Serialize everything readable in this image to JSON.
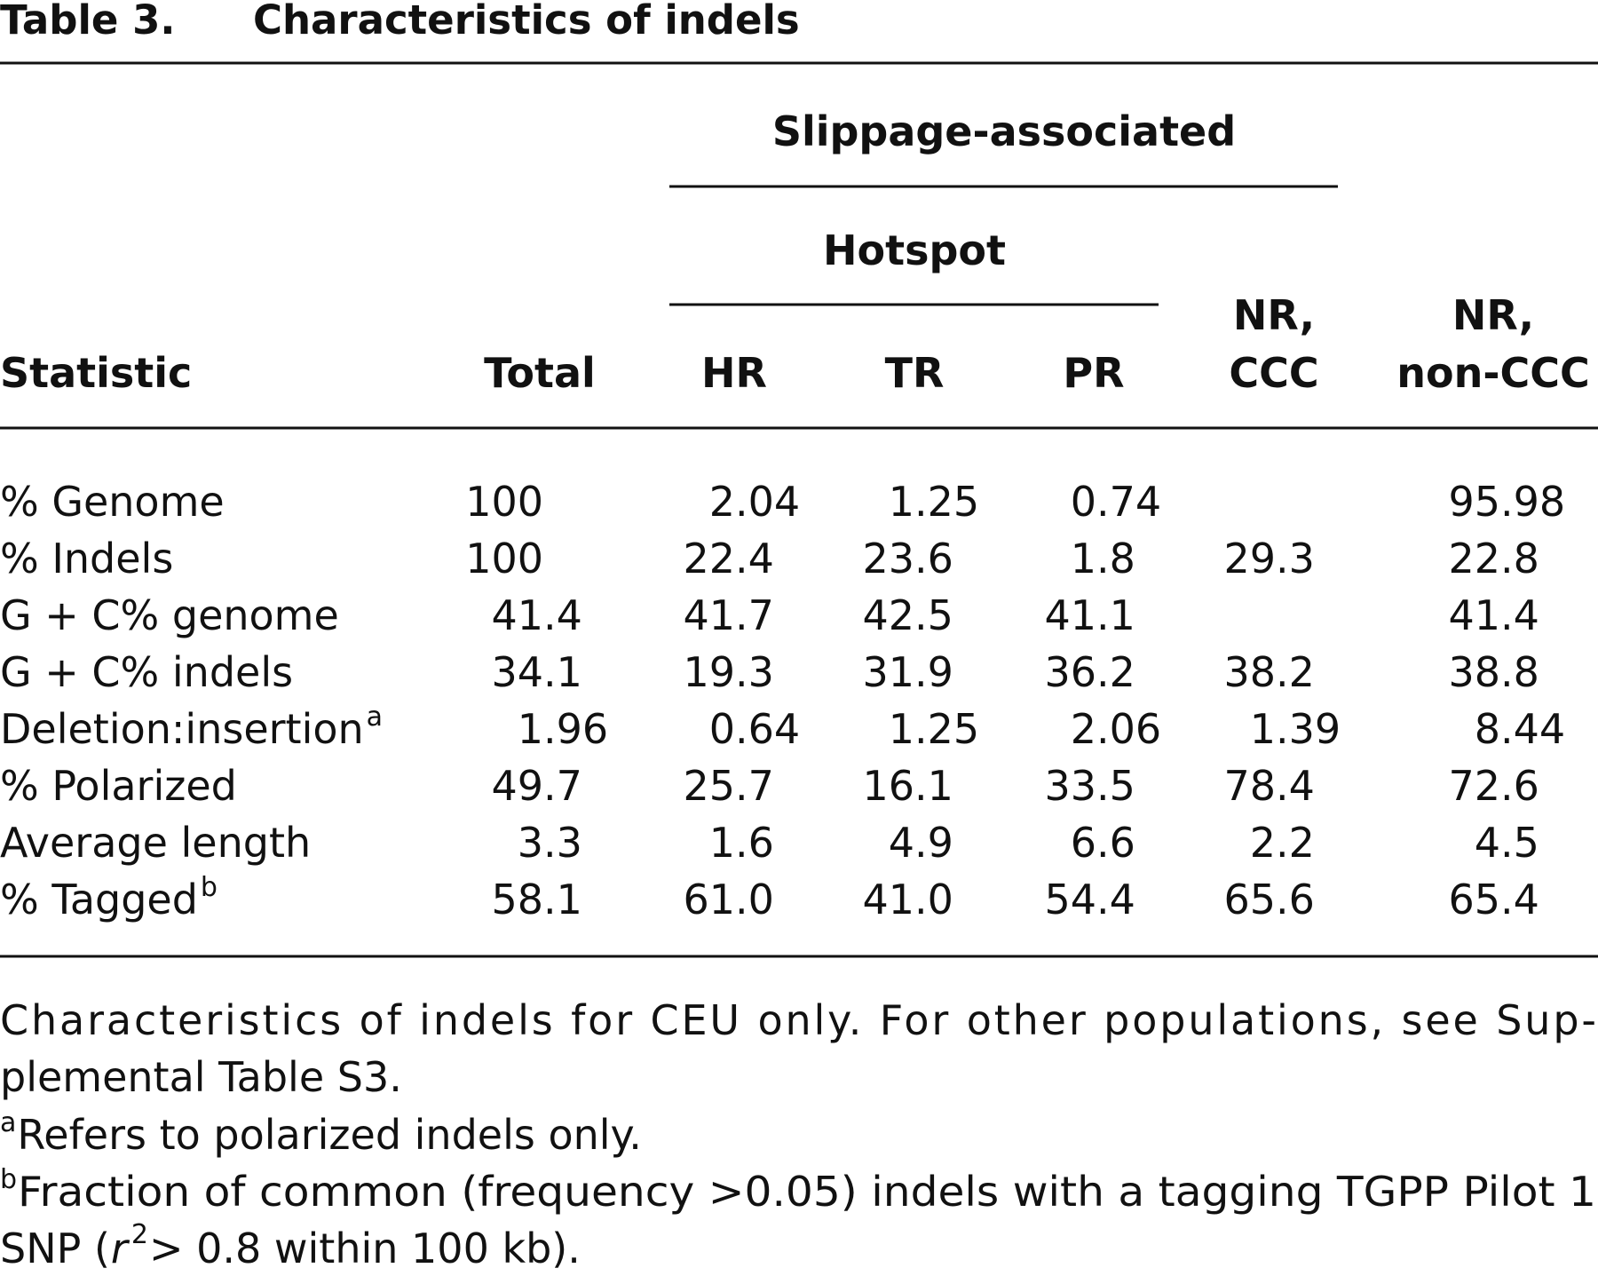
{
  "title": {
    "label": "Table 3.",
    "text": "Characteristics of indels"
  },
  "table": {
    "group_header": "Slippage-associated",
    "subgroup_header": "Hotspot",
    "columns": [
      [
        "Statistic"
      ],
      [
        "Total"
      ],
      [
        "HR"
      ],
      [
        "TR"
      ],
      [
        "PR"
      ],
      [
        "NR,",
        "CCC"
      ],
      [
        "NR,",
        "non-CCC"
      ]
    ],
    "rows": [
      {
        "label": "% Genome",
        "values": [
          "100",
          "2.04",
          "1.25",
          "0.74",
          null,
          "95.98"
        ]
      },
      {
        "label": "% Indels",
        "values": [
          "100",
          "22.4",
          "23.6",
          "1.8",
          "29.3",
          "22.8"
        ]
      },
      {
        "label": "G + C% genome",
        "values": [
          "41.4",
          "41.7",
          "42.5",
          "41.1",
          null,
          "41.4"
        ]
      },
      {
        "label": "G + C% indels",
        "values": [
          "34.1",
          "19.3",
          "31.9",
          "36.2",
          "38.2",
          "38.8"
        ]
      },
      {
        "label": "Deletion:insertion",
        "note": "a",
        "values": [
          "1.96",
          "0.64",
          "1.25",
          "2.06",
          "1.39",
          "8.44"
        ]
      },
      {
        "label": "% Polarized",
        "values": [
          "49.7",
          "25.7",
          "16.1",
          "33.5",
          "78.4",
          "72.6"
        ]
      },
      {
        "label": "Average length",
        "values": [
          "3.3",
          "1.6",
          "4.9",
          "6.6",
          "2.2",
          "4.5"
        ]
      },
      {
        "label": "% Tagged",
        "note": "b",
        "values": [
          "58.1",
          "61.0",
          "41.0",
          "54.4",
          "65.6",
          "65.4"
        ]
      }
    ]
  },
  "notes": {
    "text_lines": [
      "Characteristics of indels for CEU only. For other populations, see Sup-",
      "plemental Table S3."
    ],
    "footnotes": [
      {
        "mark": "a",
        "text": "Refers to polarized indels only."
      },
      {
        "mark": "b",
        "text": "Fraction of common (frequency >0.05) indels with a tagging TGPP Pilot 1",
        "continuation": [
          "SNP (",
          "r",
          "2",
          " > 0.8 within 100 kb)."
        ]
      }
    ]
  }
}
